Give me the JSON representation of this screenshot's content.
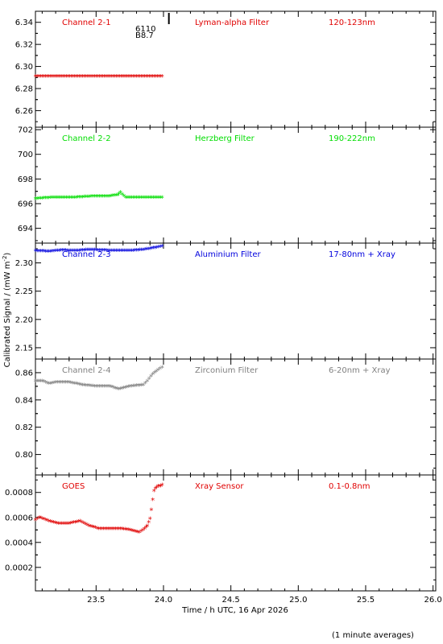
{
  "figure": {
    "ylabel": "Calibrated Signal / (mW m",
    "ylabel_sup": "-2",
    "ylabel_close": ")",
    "xlabel": "Time / h UTC, 16 Apr 2026",
    "footnote": "(1 minute averages)",
    "xlim": [
      23.05,
      26.02
    ],
    "xticks": [
      23.5,
      24.0,
      24.5,
      25.0,
      25.5,
      26.0
    ],
    "xtick_labels": [
      "23.5",
      "24.0",
      "24.5",
      "25.0",
      "25.5",
      "26.0"
    ]
  },
  "chart_data": [
    {
      "type": "scatter",
      "name": "Channel 2-1",
      "filter": "Lyman-alpha Filter",
      "band": "120-123nm",
      "color": "#e00000",
      "ylim": [
        6.245,
        6.35
      ],
      "yticks": [
        6.26,
        6.28,
        6.3,
        6.32,
        6.34
      ],
      "ytick_labels": [
        "6.26",
        "6.28",
        "6.30",
        "6.32",
        "6.34"
      ],
      "annotations": [
        "6110",
        "B8.7"
      ],
      "marker_x": 24.04,
      "x": [
        23.05,
        23.2,
        23.35,
        23.5,
        23.65,
        23.8,
        23.99
      ],
      "y": [
        6.29,
        6.29,
        6.29,
        6.29,
        6.29,
        6.29,
        6.29
      ]
    },
    {
      "type": "scatter",
      "name": "Channel 2-2",
      "filter": "Herzberg Filter",
      "band": "190-222nm",
      "color": "#00dd00",
      "ylim": [
        692.8,
        702.2
      ],
      "yticks": [
        694,
        696,
        698,
        700,
        702
      ],
      "ytick_labels": [
        "694",
        "696",
        "698",
        "700",
        "702"
      ],
      "x": [
        23.05,
        23.2,
        23.35,
        23.5,
        23.6,
        23.66,
        23.68,
        23.72,
        23.8,
        23.9,
        23.99
      ],
      "y": [
        696.3,
        696.4,
        696.4,
        696.5,
        696.5,
        696.6,
        696.8,
        696.4,
        696.4,
        696.4,
        696.4
      ]
    },
    {
      "type": "scatter",
      "name": "Channel 2-3",
      "filter": "Aluminium Filter",
      "band": "17-80nm + Xray",
      "color": "#0000dd",
      "ylim": [
        2.13,
        2.335
      ],
      "yticks": [
        2.15,
        2.2,
        2.25,
        2.3
      ],
      "ytick_labels": [
        "2.15",
        "2.20",
        "2.25",
        "2.30"
      ],
      "x": [
        23.05,
        23.15,
        23.25,
        23.35,
        23.45,
        23.55,
        23.65,
        23.75,
        23.85,
        23.9,
        23.95,
        23.99
      ],
      "y": [
        2.319,
        2.318,
        2.32,
        2.319,
        2.321,
        2.32,
        2.319,
        2.319,
        2.321,
        2.323,
        2.325,
        2.327
      ]
    },
    {
      "type": "scatter",
      "name": "Channel 2-4",
      "filter": "Zirconium Filter",
      "band": "6-20nm + Xray",
      "color": "#808080",
      "ylim": [
        0.785,
        0.87
      ],
      "yticks": [
        0.8,
        0.82,
        0.84,
        0.86
      ],
      "ytick_labels": [
        "0.80",
        "0.82",
        "0.84",
        "0.86"
      ],
      "x": [
        23.05,
        23.1,
        23.15,
        23.2,
        23.3,
        23.4,
        23.5,
        23.6,
        23.67,
        23.75,
        23.85,
        23.88,
        23.92,
        23.96,
        23.99
      ],
      "y": [
        0.853,
        0.853,
        0.851,
        0.852,
        0.852,
        0.85,
        0.849,
        0.849,
        0.847,
        0.849,
        0.85,
        0.853,
        0.858,
        0.861,
        0.863
      ]
    },
    {
      "type": "scatter",
      "name": "GOES",
      "filter": "Xray Sensor",
      "band": "0.1-0.8nm",
      "color": "#e00000",
      "ylim": [
        1.2e-05,
        0.00094
      ],
      "yticks": [
        0.0002,
        0.0004,
        0.0006,
        0.0008
      ],
      "ytick_labels": [
        "0.0002",
        "0.0004",
        "0.0006",
        "0.0008"
      ],
      "x": [
        23.05,
        23.08,
        23.15,
        23.22,
        23.3,
        23.38,
        23.45,
        23.52,
        23.6,
        23.68,
        23.75,
        23.82,
        23.86,
        23.88,
        23.9,
        23.91,
        23.92,
        23.93,
        23.94,
        23.96,
        23.98,
        23.99
      ],
      "y": [
        0.00057,
        0.00059,
        0.00056,
        0.00054,
        0.00054,
        0.00056,
        0.00052,
        0.0005,
        0.0005,
        0.0005,
        0.00049,
        0.00047,
        0.0005,
        0.00052,
        0.00058,
        0.00065,
        0.00073,
        0.0008,
        0.00082,
        0.00084,
        0.00084,
        0.00085
      ]
    }
  ]
}
